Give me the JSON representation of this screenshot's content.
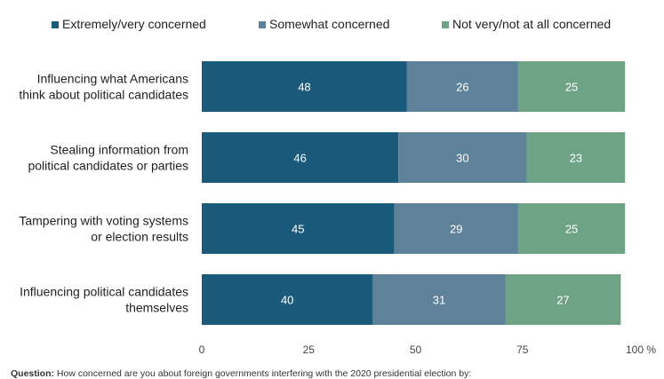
{
  "chart_data": {
    "type": "bar",
    "orientation": "horizontal",
    "stacked": true,
    "categories": [
      "Influencing what Americans think about political candidates",
      "Stealing information from political candidates or parties",
      "Tampering with voting systems or election results",
      "Influencing political candidates themselves"
    ],
    "category_lines": [
      [
        "Influencing what Americans",
        "think about political candidates"
      ],
      [
        "Stealing information from",
        "political candidates or parties"
      ],
      [
        "Tampering with voting systems",
        "or election results"
      ],
      [
        "Influencing political candidates",
        "themselves"
      ]
    ],
    "series": [
      {
        "name": "Extremely/very concerned",
        "values": [
          48,
          46,
          45,
          40
        ],
        "color": "#1a5b7c"
      },
      {
        "name": "Somewhat concerned",
        "values": [
          26,
          30,
          29,
          31
        ],
        "color": "#5d8299"
      },
      {
        "name": "Not very/not at all concerned",
        "values": [
          25,
          23,
          25,
          27
        ],
        "color": "#6fa386"
      }
    ],
    "x_ticks": [
      "0",
      "25",
      "50",
      "75",
      "100 %"
    ],
    "tick_values": [
      0,
      25,
      50,
      75,
      100
    ],
    "xlim": [
      0,
      100
    ],
    "legend_position": "top",
    "grid": false
  },
  "footer": {
    "question_label": "Question:",
    "question_text": "How concerned are you about foreign governments interfering with the 2020 presidential election by:"
  }
}
